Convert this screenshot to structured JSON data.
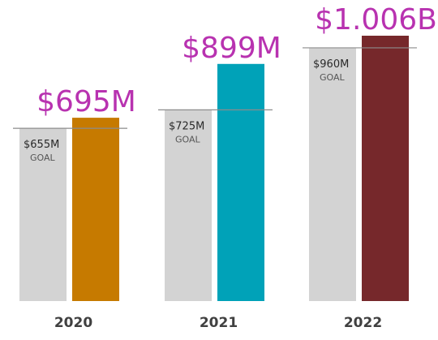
{
  "chart_data": {
    "type": "bar",
    "categories": [
      "2020",
      "2021",
      "2022"
    ],
    "series": [
      {
        "values": [
          655,
          725,
          960
        ],
        "value_labels": [
          "$655M",
          "$725M",
          "$960M"
        ],
        "tag": "GOAL",
        "color": "#d3d3d3"
      },
      {
        "values": [
          695,
          899,
          1006
        ],
        "value_labels": [
          "$695M",
          "$899M",
          "$1.006B"
        ],
        "colors": [
          "#c67a00",
          "#00a2b8",
          "#76282b"
        ]
      }
    ],
    "unit": "$M",
    "ylim": [
      0,
      1040
    ],
    "grid": false,
    "legend": "none"
  }
}
